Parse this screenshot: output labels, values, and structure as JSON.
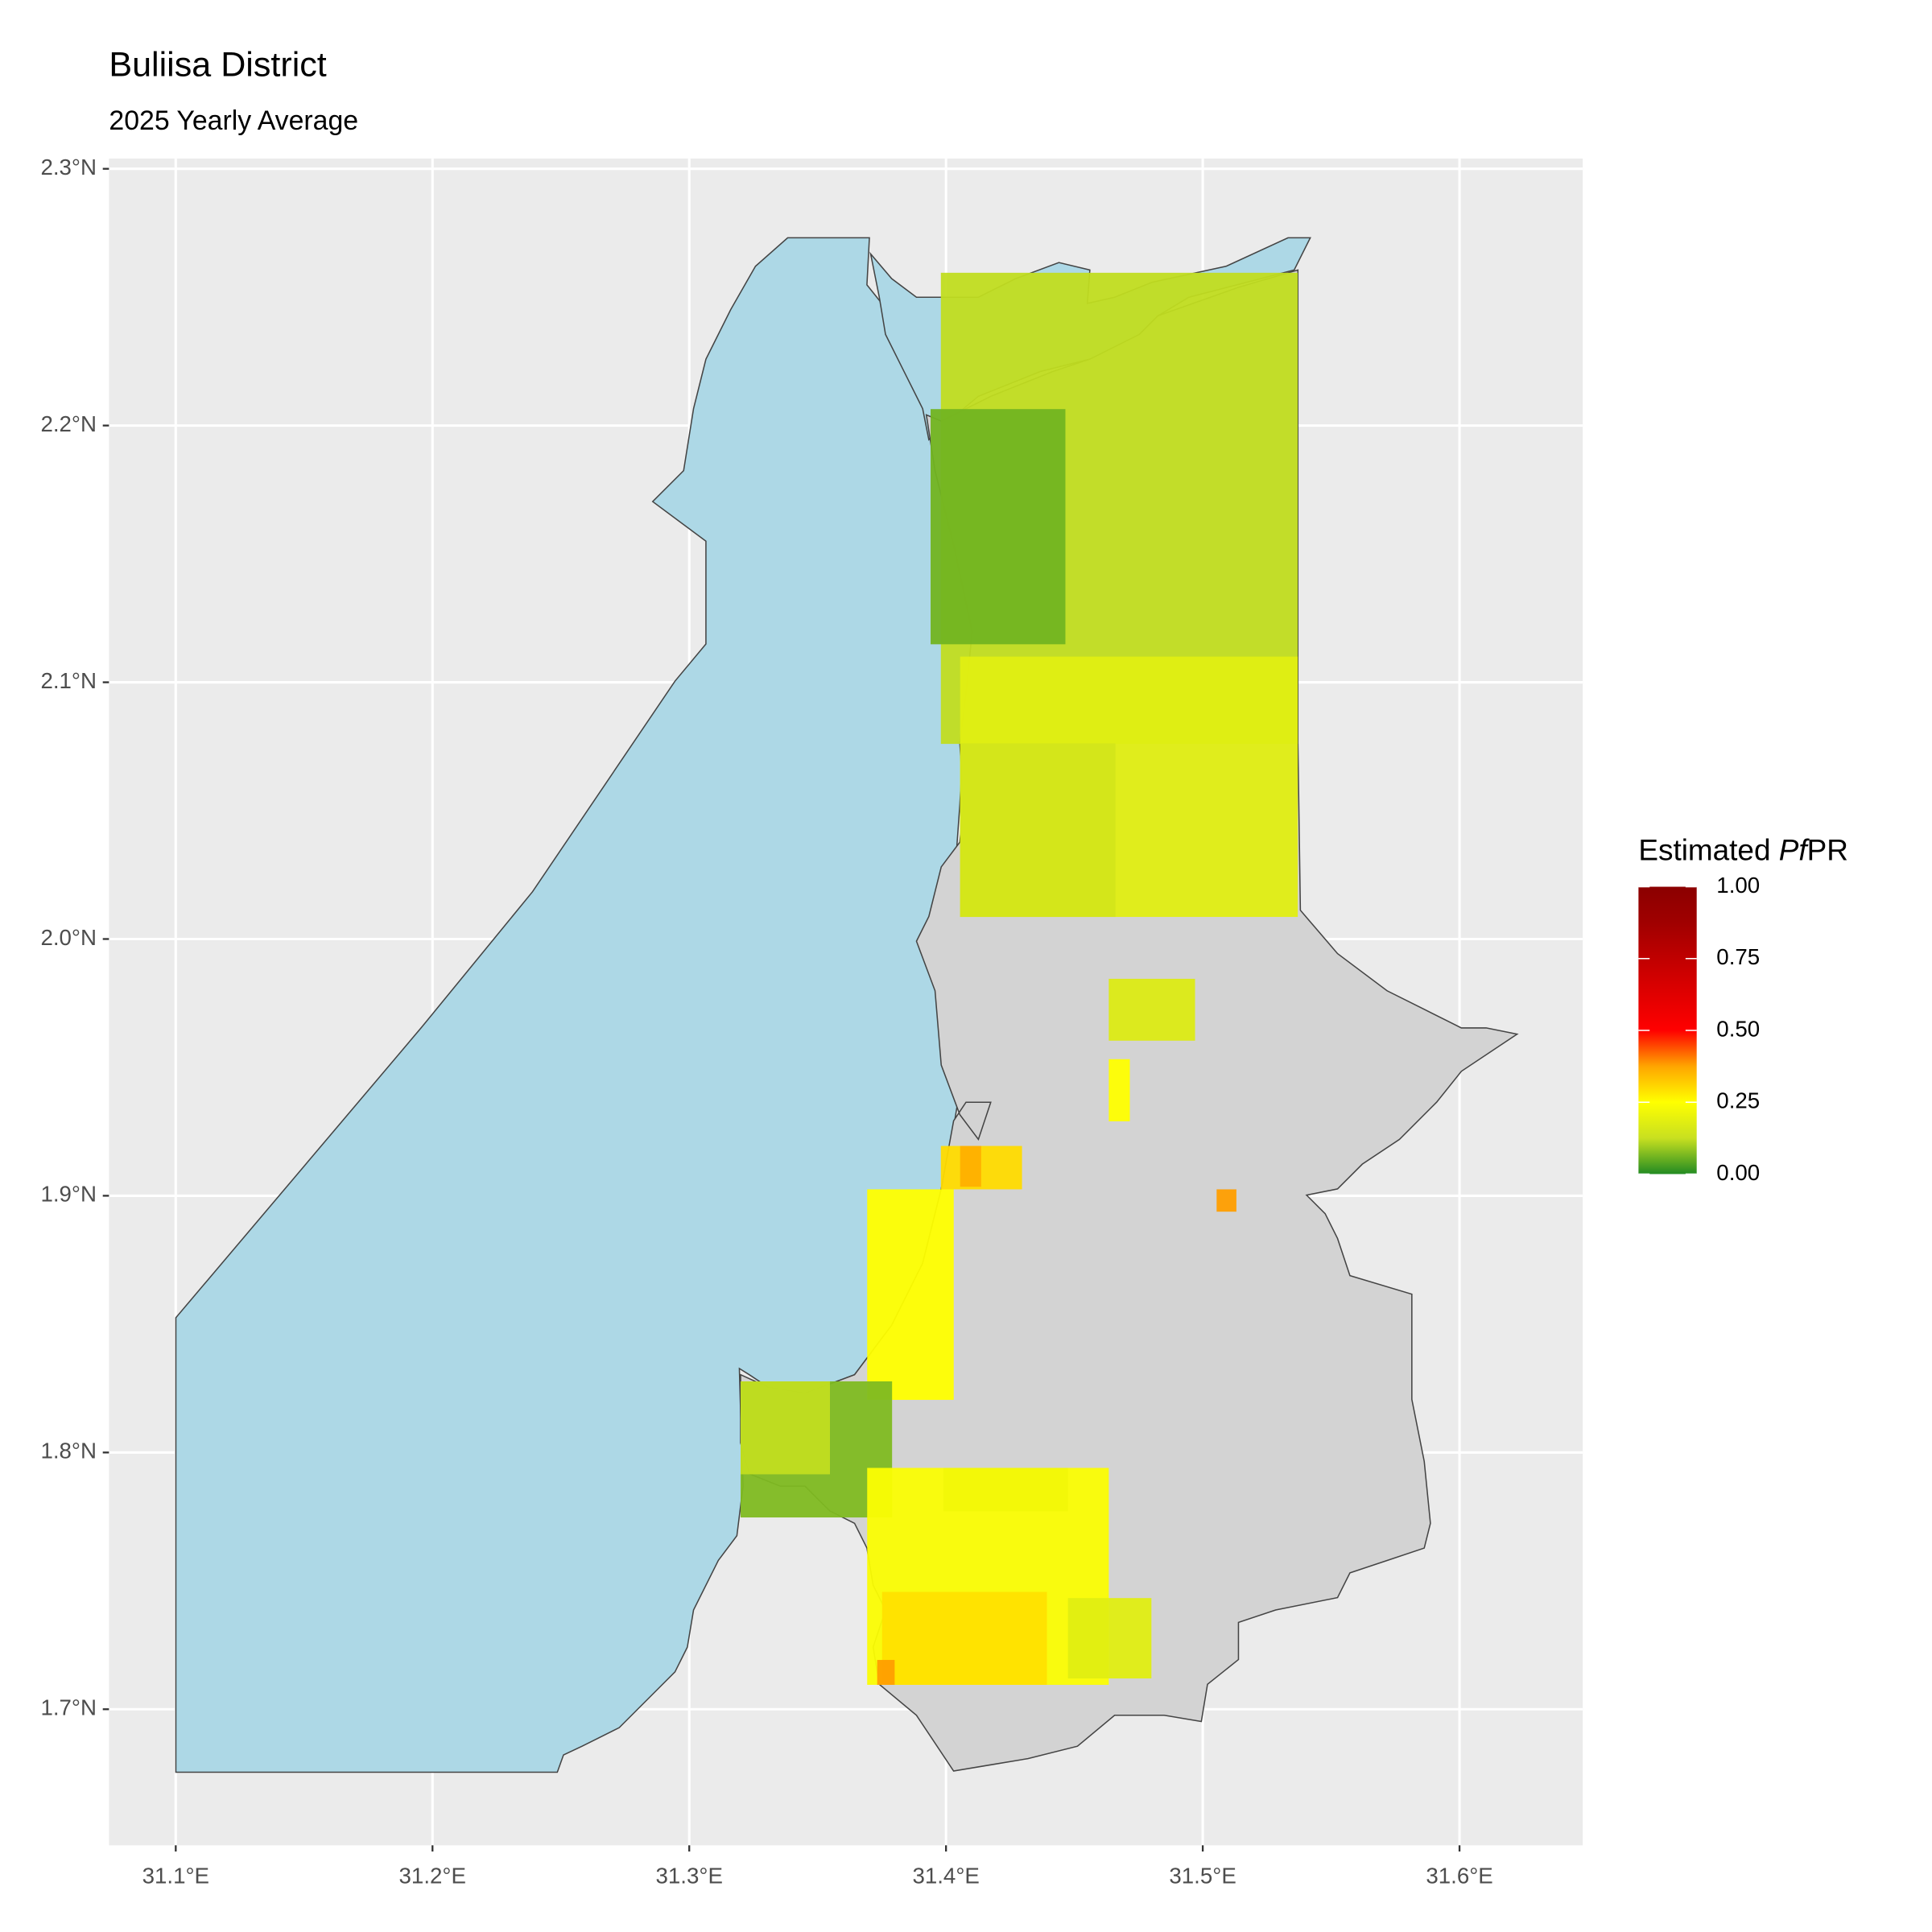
{
  "title": "Buliisa District",
  "subtitle": "2025 Yearly Average",
  "xlim": [
    31.074,
    31.648
  ],
  "ylim": [
    1.647,
    2.304
  ],
  "xticks": [
    {
      "value": 31.1,
      "label": "31.1°E"
    },
    {
      "value": 31.2,
      "label": "31.2°E"
    },
    {
      "value": 31.3,
      "label": "31.3°E"
    },
    {
      "value": 31.4,
      "label": "31.4°E"
    },
    {
      "value": 31.5,
      "label": "31.5°E"
    },
    {
      "value": 31.6,
      "label": "31.6°E"
    }
  ],
  "yticks": [
    {
      "value": 1.7,
      "label": "1.7°N"
    },
    {
      "value": 1.8,
      "label": "1.8°N"
    },
    {
      "value": 1.9,
      "label": "1.9°N"
    },
    {
      "value": 2.0,
      "label": "2.0°N"
    },
    {
      "value": 2.1,
      "label": "2.1°N"
    },
    {
      "value": 2.2,
      "label": "2.2°N"
    },
    {
      "value": 2.3,
      "label": "2.3°N"
    }
  ],
  "grid": true,
  "legend": {
    "title_prefix": "Estimated ",
    "title_italic": "Pf",
    "title_suffix": "PR",
    "lim": [
      0,
      1
    ],
    "colors": [
      "#228b22",
      "#c8e020",
      "#ffff00",
      "#ffa500",
      "#ff0000",
      "#e00000",
      "#c00000",
      "#a00000",
      "#8b0000"
    ],
    "ticks": [
      {
        "value": 0,
        "label": "0.00"
      },
      {
        "value": 0.25,
        "label": "0.25"
      },
      {
        "value": 0.5,
        "label": "0.50"
      },
      {
        "value": 0.75,
        "label": "0.75"
      },
      {
        "value": 1,
        "label": "1.00"
      }
    ]
  },
  "cells": [
    {
      "lon": [
        31.398,
        31.537
      ],
      "lat": [
        2.076,
        2.2595
      ],
      "value": 0.12
    },
    {
      "lon": [
        31.394,
        31.4465
      ],
      "lat": [
        2.1148,
        2.2064
      ],
      "value": 0.06
    },
    {
      "lon": [
        31.4055,
        31.537
      ],
      "lat": [
        2.0086,
        2.11
      ],
      "value": 0.18
    },
    {
      "lon": [
        31.4055,
        31.466
      ],
      "lat": [
        2.0086,
        2.0762
      ],
      "value": 0.15
    },
    {
      "lon": [
        31.4634,
        31.497
      ],
      "lat": [
        1.9604,
        1.9845
      ],
      "value": 0.17
    },
    {
      "lon": [
        31.4634,
        31.4716
      ],
      "lat": [
        1.929,
        1.9532
      ],
      "value": 0.25
    },
    {
      "lon": [
        31.5054,
        31.5131
      ],
      "lat": [
        1.8938,
        1.9025
      ],
      "value": 0.38
    },
    {
      "lon": [
        31.398,
        31.4296
      ],
      "lat": [
        1.9025,
        1.9194
      ],
      "value": 0.3
    },
    {
      "lon": [
        31.4055,
        31.4137
      ],
      "lat": [
        1.9035,
        1.9194
      ],
      "value": 0.36
    },
    {
      "lon": [
        31.3693,
        31.403
      ],
      "lat": [
        1.8205,
        1.9025
      ],
      "value": 0.25
    },
    {
      "lon": [
        31.32,
        31.379
      ],
      "lat": [
        1.7747,
        1.8277
      ],
      "value": 0.07
    },
    {
      "lon": [
        31.32,
        31.3548
      ],
      "lat": [
        1.7915,
        1.8277
      ],
      "value": 0.12
    },
    {
      "lon": [
        31.3693,
        31.4634
      ],
      "lat": [
        1.7095,
        1.794
      ],
      "value": 0.24
    },
    {
      "lon": [
        31.399,
        31.4475
      ],
      "lat": [
        1.7771,
        1.794
      ],
      "value": 0.22
    },
    {
      "lon": [
        31.3751,
        31.4393
      ],
      "lat": [
        1.7095,
        1.7457
      ],
      "value": 0.29
    },
    {
      "lon": [
        31.3732,
        31.38
      ],
      "lat": [
        1.7095,
        1.7192
      ],
      "value": 0.38
    },
    {
      "lon": [
        31.4475,
        31.48
      ],
      "lat": [
        1.712,
        1.7433
      ],
      "value": 0.18
    }
  ]
}
